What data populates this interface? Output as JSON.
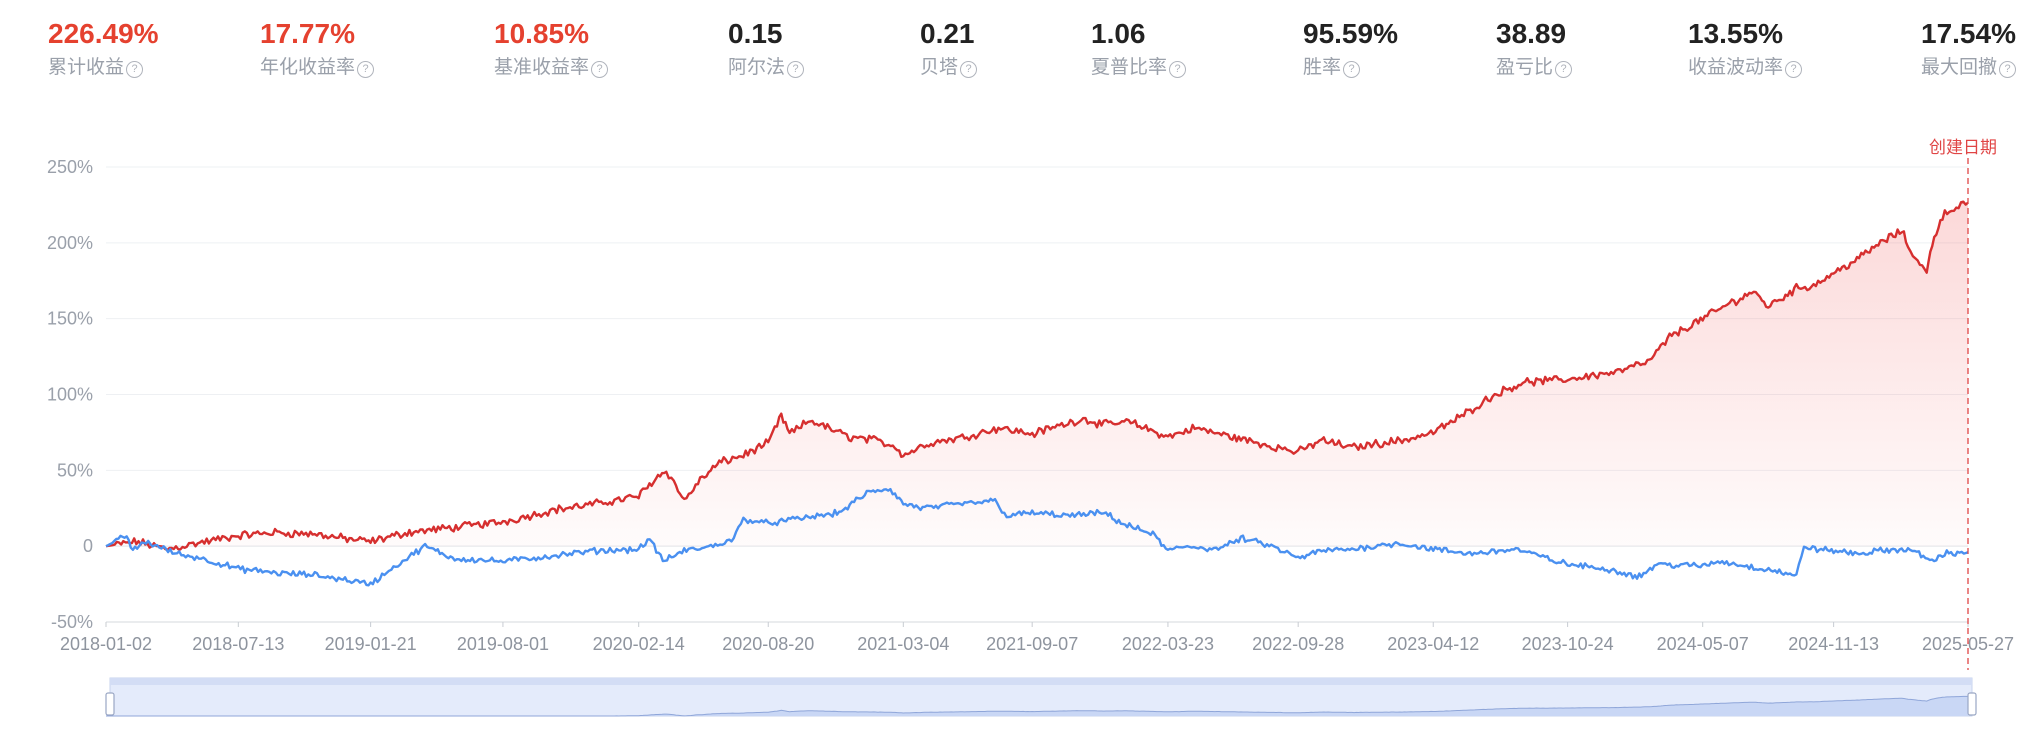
{
  "metrics": [
    {
      "value": "226.49%",
      "label": "累计收益",
      "color": "#e5412f"
    },
    {
      "value": "17.77%",
      "label": "年化收益率",
      "color": "#e5412f"
    },
    {
      "value": "10.85%",
      "label": "基准收益率",
      "color": "#e5412f"
    },
    {
      "value": "0.15",
      "label": "阿尔法",
      "color": "#222222"
    },
    {
      "value": "0.21",
      "label": "贝塔",
      "color": "#222222"
    },
    {
      "value": "1.06",
      "label": "夏普比率",
      "color": "#222222"
    },
    {
      "value": "95.59%",
      "label": "胜率",
      "color": "#222222"
    },
    {
      "value": "38.89",
      "label": "盈亏比",
      "color": "#222222"
    },
    {
      "value": "13.55%",
      "label": "收益波动率",
      "color": "#222222"
    },
    {
      "value": "17.54%",
      "label": "最大回撤",
      "color": "#222222"
    }
  ],
  "help_glyph": "?",
  "chart_data": {
    "type": "line",
    "x_start": "2018-01-02",
    "x_end": "2025-05-27",
    "x_tick_labels": [
      "2018-01-02",
      "2018-07-13",
      "2019-01-21",
      "2019-08-01",
      "2020-02-14",
      "2020-08-20",
      "2021-03-04",
      "2021-09-07",
      "2022-03-23",
      "2022-09-28",
      "2023-04-12",
      "2023-10-24",
      "2024-05-07",
      "2024-11-13",
      "2025-05-27"
    ],
    "y_ticks": [
      -50,
      0,
      50,
      100,
      150,
      200,
      250
    ],
    "y_tick_labels": [
      "-50%",
      "0",
      "50%",
      "100%",
      "150%",
      "200%",
      "250%"
    ],
    "ylim": [
      -50,
      250
    ],
    "grid": true,
    "marker_label": "创建日期",
    "marker_date": "2025-05-27",
    "series": [
      {
        "color": "#d62f2f",
        "fill": true,
        "points": [
          [
            "2018-01-02",
            0
          ],
          [
            "2018-02-15",
            3
          ],
          [
            "2018-04-01",
            -2
          ],
          [
            "2018-05-15",
            2
          ],
          [
            "2018-07-13",
            7
          ],
          [
            "2018-09-01",
            9
          ],
          [
            "2018-11-01",
            8
          ],
          [
            "2018-12-15",
            5
          ],
          [
            "2019-01-21",
            3
          ],
          [
            "2019-03-15",
            9
          ],
          [
            "2019-05-15",
            12
          ],
          [
            "2019-08-01",
            16
          ],
          [
            "2019-10-15",
            24
          ],
          [
            "2019-12-15",
            28
          ],
          [
            "2020-02-14",
            33
          ],
          [
            "2020-03-10",
            45
          ],
          [
            "2020-03-25",
            50
          ],
          [
            "2020-04-05",
            42
          ],
          [
            "2020-04-20",
            30
          ],
          [
            "2020-05-10",
            42
          ],
          [
            "2020-06-10",
            55
          ],
          [
            "2020-07-15",
            60
          ],
          [
            "2020-08-20",
            68
          ],
          [
            "2020-09-08",
            86
          ],
          [
            "2020-09-20",
            74
          ],
          [
            "2020-10-20",
            83
          ],
          [
            "2020-12-15",
            72
          ],
          [
            "2021-01-20",
            70
          ],
          [
            "2021-02-20",
            66
          ],
          [
            "2021-03-04",
            60
          ],
          [
            "2021-04-10",
            68
          ],
          [
            "2021-06-01",
            72
          ],
          [
            "2021-07-20",
            78
          ],
          [
            "2021-09-07",
            74
          ],
          [
            "2021-10-20",
            80
          ],
          [
            "2021-11-20",
            84
          ],
          [
            "2021-12-20",
            80
          ],
          [
            "2022-01-25",
            82
          ],
          [
            "2022-03-23",
            72
          ],
          [
            "2022-05-01",
            78
          ],
          [
            "2022-06-15",
            73
          ],
          [
            "2022-08-01",
            68
          ],
          [
            "2022-09-28",
            62
          ],
          [
            "2022-11-01",
            70
          ],
          [
            "2022-12-15",
            65
          ],
          [
            "2023-01-25",
            68
          ],
          [
            "2023-03-01",
            70
          ],
          [
            "2023-04-12",
            75
          ],
          [
            "2023-05-20",
            85
          ],
          [
            "2023-07-10",
            100
          ],
          [
            "2023-08-20",
            108
          ],
          [
            "2023-10-24",
            110
          ],
          [
            "2023-11-20",
            112
          ],
          [
            "2024-01-05",
            115
          ],
          [
            "2024-02-20",
            122
          ],
          [
            "2024-03-20",
            138
          ],
          [
            "2024-05-07",
            150
          ],
          [
            "2024-06-15",
            160
          ],
          [
            "2024-07-20",
            168
          ],
          [
            "2024-08-10",
            158
          ],
          [
            "2024-09-20",
            170
          ],
          [
            "2024-10-15",
            172
          ],
          [
            "2024-11-13",
            180
          ],
          [
            "2024-12-20",
            190
          ],
          [
            "2025-01-20",
            200
          ],
          [
            "2025-02-20",
            208
          ],
          [
            "2025-03-01",
            198
          ],
          [
            "2025-03-15",
            188
          ],
          [
            "2025-03-28",
            180
          ],
          [
            "2025-04-05",
            200
          ],
          [
            "2025-04-20",
            218
          ],
          [
            "2025-05-10",
            224
          ],
          [
            "2025-05-27",
            226.5
          ]
        ]
      },
      {
        "color": "#4a90f0",
        "fill": false,
        "points": [
          [
            "2018-01-02",
            0
          ],
          [
            "2018-01-20",
            4
          ],
          [
            "2018-02-01",
            7
          ],
          [
            "2018-02-10",
            -3
          ],
          [
            "2018-03-01",
            3
          ],
          [
            "2018-04-15",
            -5
          ],
          [
            "2018-05-20",
            -8
          ],
          [
            "2018-07-13",
            -15
          ],
          [
            "2018-09-15",
            -18
          ],
          [
            "2018-11-01",
            -19
          ],
          [
            "2018-12-15",
            -22
          ],
          [
            "2019-01-21",
            -25
          ],
          [
            "2019-02-20",
            -15
          ],
          [
            "2019-04-10",
            0
          ],
          [
            "2019-05-20",
            -8
          ],
          [
            "2019-08-01",
            -10
          ],
          [
            "2019-10-01",
            -7
          ],
          [
            "2019-12-15",
            -3
          ],
          [
            "2020-02-14",
            -2
          ],
          [
            "2020-03-01",
            5
          ],
          [
            "2020-03-20",
            -10
          ],
          [
            "2020-04-20",
            -3
          ],
          [
            "2020-06-01",
            0
          ],
          [
            "2020-07-01",
            5
          ],
          [
            "2020-07-15",
            18
          ],
          [
            "2020-08-20",
            15
          ],
          [
            "2020-10-01",
            18
          ],
          [
            "2020-12-01",
            22
          ],
          [
            "2021-01-10",
            35
          ],
          [
            "2021-02-10",
            38
          ],
          [
            "2021-02-20",
            34
          ],
          [
            "2021-03-04",
            28
          ],
          [
            "2021-04-01",
            25
          ],
          [
            "2021-06-01",
            28
          ],
          [
            "2021-07-15",
            30
          ],
          [
            "2021-08-01",
            20
          ],
          [
            "2021-09-07",
            22
          ],
          [
            "2021-11-01",
            20
          ],
          [
            "2021-12-20",
            22
          ],
          [
            "2022-01-20",
            14
          ],
          [
            "2022-03-01",
            8
          ],
          [
            "2022-03-23",
            -3
          ],
          [
            "2022-04-20",
            0
          ],
          [
            "2022-06-01",
            -2
          ],
          [
            "2022-07-10",
            5
          ],
          [
            "2022-08-20",
            0
          ],
          [
            "2022-09-28",
            -8
          ],
          [
            "2022-11-01",
            -3
          ],
          [
            "2022-12-15",
            -2
          ],
          [
            "2023-01-15",
            0
          ],
          [
            "2023-02-20",
            2
          ],
          [
            "2023-04-12",
            -2
          ],
          [
            "2023-06-01",
            -5
          ],
          [
            "2023-08-10",
            -2
          ],
          [
            "2023-10-24",
            -12
          ],
          [
            "2023-12-20",
            -15
          ],
          [
            "2024-02-05",
            -20
          ],
          [
            "2024-03-01",
            -12
          ],
          [
            "2024-05-07",
            -13
          ],
          [
            "2024-06-01",
            -10
          ],
          [
            "2024-07-20",
            -14
          ],
          [
            "2024-08-20",
            -16
          ],
          [
            "2024-09-20",
            -20
          ],
          [
            "2024-10-01",
            0
          ],
          [
            "2024-10-20",
            -2
          ],
          [
            "2024-11-13",
            -3
          ],
          [
            "2024-12-20",
            -5
          ],
          [
            "2025-01-20",
            -3
          ],
          [
            "2025-03-01",
            -2
          ],
          [
            "2025-04-08",
            -10
          ],
          [
            "2025-04-20",
            -5
          ],
          [
            "2025-05-27",
            -4
          ]
        ]
      }
    ]
  }
}
